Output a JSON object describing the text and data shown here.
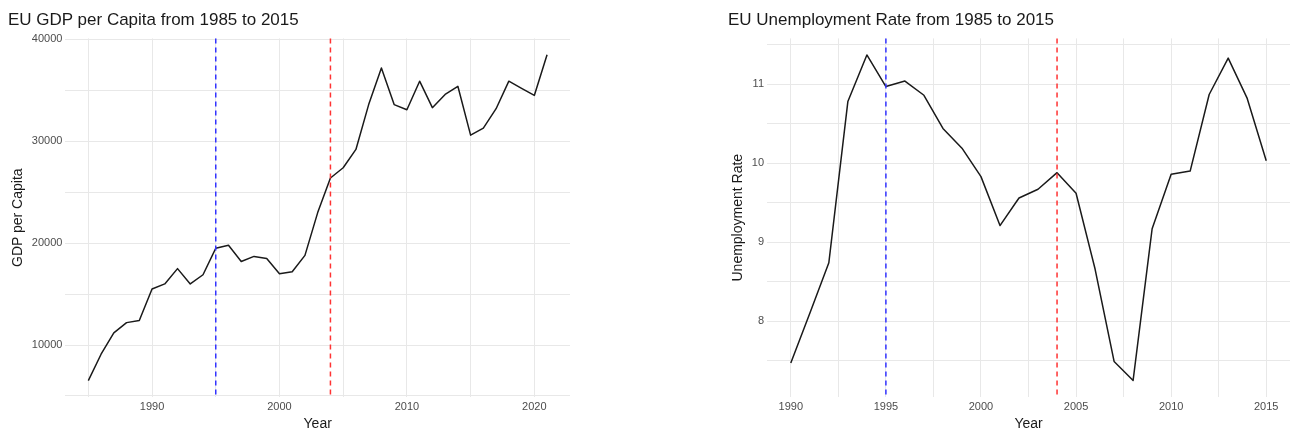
{
  "chart_data": [
    {
      "type": "line",
      "title": "EU GDP per Capita from 1985 to 2015",
      "xlabel": "Year",
      "ylabel": "GDP per Capita",
      "x": [
        1985,
        1986,
        1987,
        1988,
        1989,
        1990,
        1991,
        1992,
        1993,
        1994,
        1995,
        1996,
        1997,
        1998,
        1999,
        2000,
        2001,
        2002,
        2003,
        2004,
        2005,
        2006,
        2007,
        2008,
        2009,
        2010,
        2011,
        2012,
        2013,
        2014,
        2015,
        2016,
        2017,
        2018,
        2019,
        2020,
        2021
      ],
      "series": [
        {
          "color": "#1a1a1a",
          "values": [
            6500,
            9100,
            11200,
            12200,
            12400,
            15500,
            16000,
            17500,
            16000,
            16900,
            19500,
            19800,
            18200,
            18700,
            18500,
            17000,
            17200,
            18800,
            23000,
            26400,
            27400,
            29200,
            33600,
            37200,
            33600,
            33100,
            35900,
            33300,
            34600,
            35400,
            30600,
            31300,
            33200,
            35900,
            35200,
            34500,
            38500
          ]
        }
      ],
      "xlim": [
        1983.2,
        2022.8
      ],
      "xticks": [
        {
          "value": 1985,
          "label": null
        },
        1990,
        {
          "value": 1995,
          "label": null
        },
        2000,
        {
          "value": 2005,
          "label": null
        },
        2010,
        {
          "value": 2015,
          "label": null
        },
        2020
      ],
      "ylim": [
        4900,
        40100
      ],
      "yticks": [
        {
          "value": 5000,
          "label": null
        },
        10000,
        {
          "value": 15000,
          "label": null
        },
        20000,
        {
          "value": 25000,
          "label": null
        },
        30000,
        {
          "value": 35000,
          "label": null
        },
        40000
      ],
      "ref_lines": [
        {
          "axis": "x",
          "value": 1995,
          "color": "#3333ff",
          "line_style": "dashed"
        },
        {
          "axis": "x",
          "value": 2004,
          "color": "#ff3333",
          "line_style": "dashed"
        }
      ],
      "grid": true,
      "legend": false,
      "marker": "none",
      "line_style": "solid"
    },
    {
      "type": "line",
      "title": "EU Unemployment Rate from 1985 to 2015",
      "xlabel": "Year",
      "ylabel": "Unemployment Rate",
      "x": [
        1990,
        1991,
        1992,
        1993,
        1994,
        1995,
        1996,
        1997,
        1998,
        1999,
        2000,
        2001,
        2002,
        2003,
        2004,
        2005,
        2006,
        2007,
        2008,
        2009,
        2010,
        2011,
        2012,
        2013,
        2014,
        2015
      ],
      "series": [
        {
          "color": "#1a1a1a",
          "values": [
            7.47,
            8.1,
            8.74,
            10.78,
            11.37,
            10.97,
            11.04,
            10.86,
            10.44,
            10.19,
            9.83,
            9.21,
            9.56,
            9.67,
            9.88,
            9.62,
            8.66,
            7.49,
            7.25,
            9.17,
            9.86,
            9.9,
            10.87,
            11.33,
            10.82,
            10.03
          ]
        }
      ],
      "xlim": [
        1988.75,
        2016.25
      ],
      "xticks": [
        1990,
        {
          "value": 1992.5,
          "label": null
        },
        1995,
        {
          "value": 1997.5,
          "label": null
        },
        2000,
        {
          "value": 2002.5,
          "label": null
        },
        2005,
        {
          "value": 2007.5,
          "label": null
        },
        2010,
        {
          "value": 2012.5,
          "label": null
        },
        2015
      ],
      "ylim": [
        7.04,
        11.58
      ],
      "yticks": [
        {
          "value": 7.5,
          "label": null
        },
        8,
        {
          "value": 8.5,
          "label": null
        },
        9,
        {
          "value": 9.5,
          "label": null
        },
        10,
        {
          "value": 10.5,
          "label": null
        },
        11,
        {
          "value": 11.5,
          "label": null
        }
      ],
      "ref_lines": [
        {
          "axis": "x",
          "value": 1995,
          "color": "#3333ff",
          "line_style": "dashed"
        },
        {
          "axis": "x",
          "value": 2004,
          "color": "#ff3333",
          "line_style": "dashed"
        }
      ],
      "grid": true,
      "legend": false,
      "marker": "none",
      "line_style": "solid"
    }
  ]
}
